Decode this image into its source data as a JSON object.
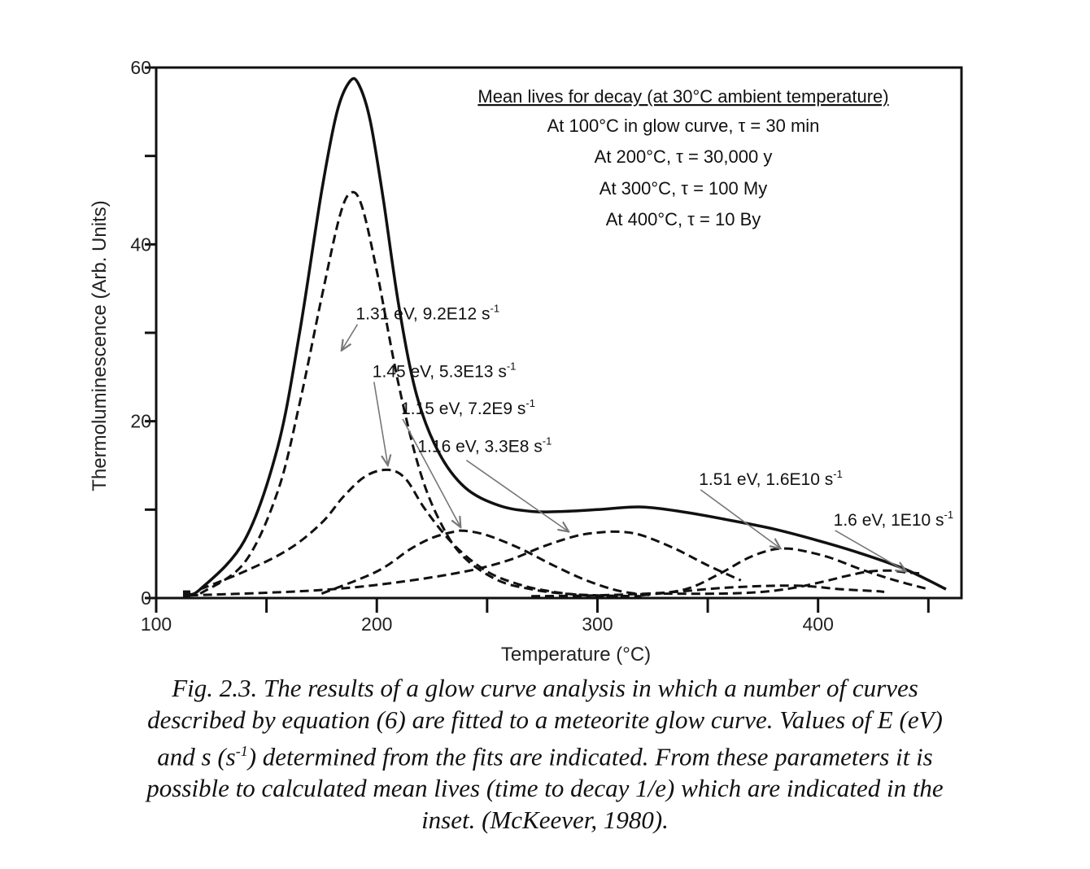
{
  "chart_data": {
    "type": "line",
    "xlabel": "Temperature (°C)",
    "ylabel": "Thermoluminescence (Arb. Units)",
    "xlim": [
      100,
      465
    ],
    "ylim": [
      0,
      60
    ],
    "x_ticks": [
      100,
      200,
      300,
      400
    ],
    "y_ticks": [
      0,
      20,
      40,
      60
    ],
    "series": [
      {
        "style": "solid",
        "x": [
          114,
          120,
          140,
          155,
          165,
          175,
          182,
          188,
          192,
          197,
          203,
          210,
          218,
          228,
          240,
          255,
          270,
          285,
          300,
          320,
          340,
          360,
          380,
          400,
          420,
          440,
          458
        ],
        "y": [
          0.5,
          1,
          6.5,
          17,
          30,
          46,
          55,
          58.5,
          58,
          54,
          45,
          33,
          23,
          16.5,
          12.5,
          10.5,
          9.8,
          9.8,
          10,
          10.3,
          9.7,
          8.8,
          7.8,
          6.5,
          5,
          3.2,
          1
        ]
      },
      {
        "style": "dashed",
        "x": [
          120,
          140,
          155,
          165,
          175,
          183,
          188,
          193,
          200,
          210,
          220,
          230,
          240,
          255,
          270,
          285,
          300,
          320
        ],
        "y": [
          0.5,
          4,
          12,
          22,
          34,
          43,
          45.8,
          44.5,
          37,
          24,
          14,
          8,
          4.5,
          2,
          1,
          0.5,
          0.3,
          0.2
        ]
      },
      {
        "style": "dashed",
        "x": [
          120,
          140,
          160,
          175,
          185,
          195,
          205,
          213,
          222,
          235,
          250,
          265,
          280,
          295,
          310
        ],
        "y": [
          1,
          3,
          5.5,
          8.5,
          11.5,
          13.8,
          14.5,
          13.5,
          10,
          6,
          3,
          1.5,
          0.7,
          0.3,
          0.2
        ]
      },
      {
        "style": "dashed",
        "x": [
          175,
          200,
          215,
          225,
          235,
          240,
          250,
          265,
          280,
          295,
          310,
          325
        ],
        "y": [
          0.5,
          3,
          5.5,
          6.8,
          7.5,
          7.6,
          7.1,
          5.6,
          3.7,
          2,
          0.8,
          0.3
        ]
      },
      {
        "style": "dashed",
        "x": [
          115,
          150,
          180,
          210,
          240,
          260,
          275,
          290,
          300,
          310,
          320,
          335,
          350,
          365
        ],
        "y": [
          0.3,
          0.6,
          1,
          1.8,
          3,
          4.3,
          5.8,
          7,
          7.4,
          7.5,
          7.1,
          5.6,
          3.7,
          2
        ]
      },
      {
        "style": "dashed",
        "x": [
          320,
          340,
          355,
          368,
          378,
          385,
          392,
          405,
          420,
          435,
          450
        ],
        "y": [
          0.3,
          1,
          2.7,
          4.5,
          5.4,
          5.6,
          5.4,
          4.6,
          3.2,
          2,
          1
        ]
      },
      {
        "style": "dashed",
        "x": [
          330,
          355,
          375,
          390,
          403,
          413,
          423,
          433,
          440,
          446
        ],
        "y": [
          0.5,
          0.5,
          0.7,
          1.2,
          1.9,
          2.5,
          3,
          3.1,
          2.9,
          2.8
        ]
      },
      {
        "style": "dashed",
        "x": [
          270,
          300,
          330,
          360,
          390,
          410,
          425,
          430
        ],
        "y": [
          0.2,
          0.3,
          0.6,
          1.2,
          1.4,
          1,
          0.8,
          0.7
        ]
      }
    ],
    "inset": {
      "heading": "Mean lives for decay (at 30°C ambient temperature)",
      "lines": [
        "At 100°C in glow curve, τ = 30 min",
        "At 200°C, τ = 30,000 y",
        "At 300°C, τ = 100 My",
        "At 400°C, τ = 10 By"
      ]
    },
    "annotations": [
      {
        "text": "1.31 eV, 9.2E12 s",
        "sup": "-1",
        "x": 190.5,
        "y": 31.5,
        "target_x": 184,
        "target_y": 28
      },
      {
        "text": "1.45 eV, 5.3E13 s",
        "sup": "-1",
        "x": 198,
        "y": 25,
        "target_x": 205,
        "target_y": 15
      },
      {
        "text": "1.15 eV, 7.2E9 s",
        "sup": "-1",
        "x": 211,
        "y": 20.8,
        "target_x": 238,
        "target_y": 8
      },
      {
        "text": "1.16 eV, 3.3E8 s",
        "sup": "-1",
        "x": 218.5,
        "y": 16.5,
        "target_x": 287,
        "target_y": 7.5
      },
      {
        "text": "1.51 eV, 1.6E10 s",
        "sup": "-1",
        "x": 346,
        "y": 12.8,
        "target_x": 383,
        "target_y": 5.6
      },
      {
        "text": "1.6 eV, 1E10 s",
        "sup": "-1",
        "x": 407,
        "y": 8.2,
        "target_x": 440,
        "target_y": 3
      }
    ]
  },
  "caption": {
    "line1": "Fig. 2.3.  The results of a glow curve analysis in which a number of curves",
    "line2": "described by equation (6) are fitted to a meteorite glow curve.  Values of E (eV)",
    "line3a": "and s (s",
    "line3sup": "-1",
    "line3b": ") determined from the fits are indicated.  From these parameters it is",
    "line4": "possible to calculated mean lives (time to decay 1/e) which are indicated in the",
    "line5": "inset.  (McKeever, 1980)."
  }
}
